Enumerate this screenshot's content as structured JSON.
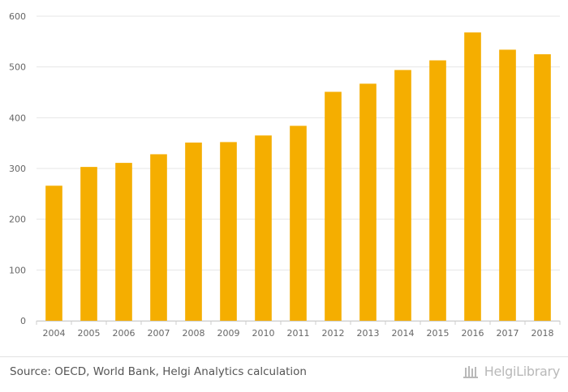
{
  "chart_data": {
    "type": "bar",
    "categories": [
      "2004",
      "2005",
      "2006",
      "2007",
      "2008",
      "2009",
      "2010",
      "2011",
      "2012",
      "2013",
      "2014",
      "2015",
      "2016",
      "2017",
      "2018"
    ],
    "values": [
      266,
      303,
      311,
      328,
      351,
      352,
      365,
      384,
      451,
      467,
      494,
      513,
      568,
      534,
      525
    ],
    "ylim": [
      0,
      600
    ],
    "yticks": [
      0,
      100,
      200,
      300,
      400,
      500,
      600
    ],
    "grid": true,
    "bar_color": "#f5ae00",
    "grid_color": "#e6e6e6",
    "title": "",
    "xlabel": "",
    "ylabel": ""
  },
  "footer": {
    "source": "Source: OECD, World Bank, Helgi Analytics calculation",
    "brand_name": "HelgiLibrary",
    "brand_icon": "helgi-library-logo-icon"
  }
}
